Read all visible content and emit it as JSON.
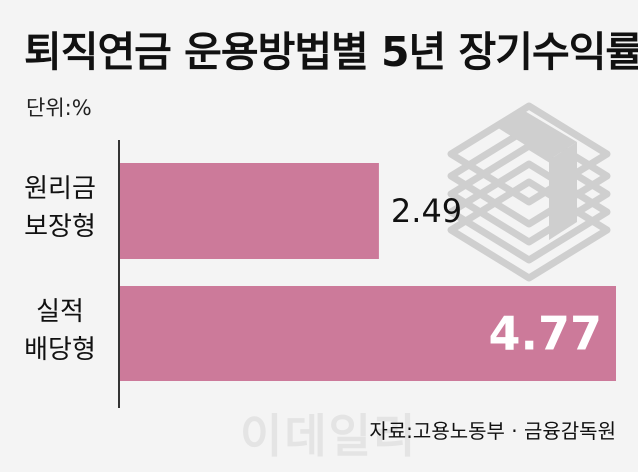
{
  "title": "퇴직연금 운용방법별 5년 장기수익률",
  "unit": "단위:%",
  "source": "자료:고용노동부 · 금융감독원",
  "watermark": "이데일리",
  "colors": {
    "background": "#f4f4f4",
    "bar": "#cc7a9a",
    "axis": "#333333",
    "icon_stroke": "#cfcfcf"
  },
  "icon": "money-stack-icon",
  "chart_data": {
    "type": "bar",
    "orientation": "horizontal",
    "title": "퇴직연금 운용방법별 5년 장기수익률",
    "unit": "%",
    "categories": [
      [
        "원리금",
        "보장형"
      ],
      [
        "실적",
        "배당형"
      ]
    ],
    "values": [
      2.49,
      4.77
    ],
    "value_labels": [
      "2.49",
      "4.77"
    ],
    "xlim": [
      0,
      4.77
    ],
    "grid": false,
    "legend": "none"
  }
}
